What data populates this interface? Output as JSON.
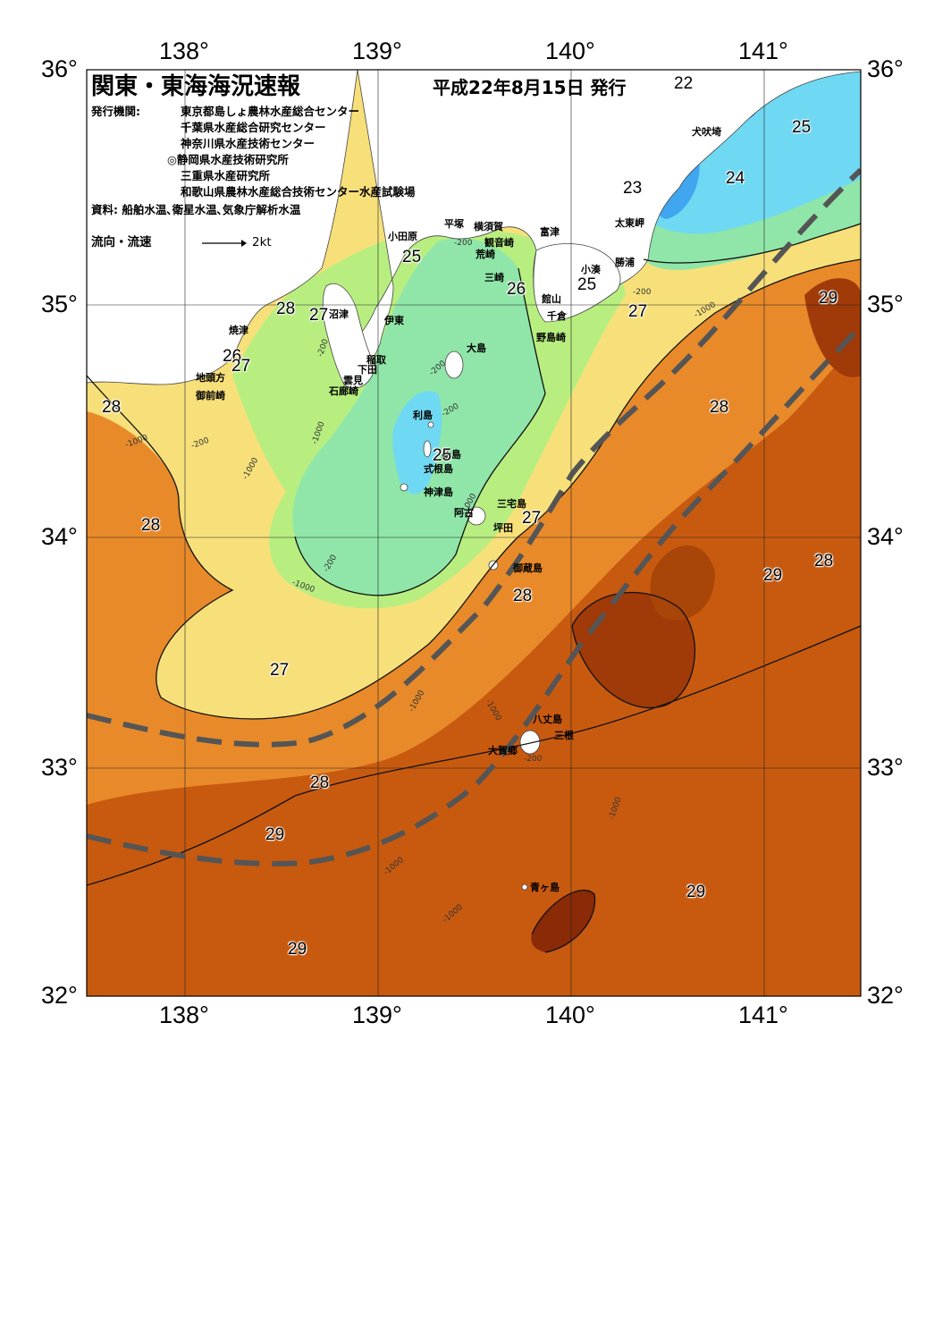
{
  "title": "関東・東海海況速報",
  "issue_date": "平成22年8月15日 発行",
  "issuers_label": "発行機関:",
  "issuers": [
    "東京都島しょ農林水産総合センター",
    "千葉県水産総合研究センター",
    "神奈川県水産技術センター",
    "◎静岡県水産技術研究所",
    "三重県水産研究所",
    "和歌山県農林水産総合技術センター水産試験場"
  ],
  "sources": "資料: 船舶水温､衛星水温､気象庁解析水温",
  "current_legend": {
    "label": "流向・流速",
    "speed": "2kt"
  },
  "axes": {
    "lon_top": [
      "138°",
      "139°",
      "140°",
      "141°"
    ],
    "lon_bottom": [
      "138°",
      "139°",
      "140°",
      "141°"
    ],
    "lat_left": [
      "36°",
      "35°",
      "34°",
      "33°",
      "32°"
    ],
    "lat_right": [
      "36°",
      "35°",
      "34°",
      "33°",
      "32°"
    ]
  },
  "colors": {
    "t22": "#2f6fe0",
    "t23": "#3fa6ef",
    "t24": "#6fd8f2",
    "t25": "#8fe6a8",
    "t26": "#b8ee80",
    "t27": "#f7e07a",
    "t28": "#e88a2a",
    "t29": "#c85a10",
    "t30": "#8a2a06",
    "land": "#ffffff",
    "kuroshio": "#555555"
  },
  "place_names": {
    "inubozaki": "犬吠埼",
    "taitomisaki": "太東岬",
    "katsuura": "勝浦",
    "kominato": "小湊",
    "futtsu": "富津",
    "kannonzaki": "観音崎",
    "arasaki": "荒崎",
    "yokosuka": "横須賀",
    "hiratsuka": "平塚",
    "odawara": "小田原",
    "misaki": "三崎",
    "tateyama": "館山",
    "chikura": "千倉",
    "nojimazaki": "野島崎",
    "oshima": "大島",
    "ito": "伊東",
    "inatori": "稲取",
    "shimoda": "下田",
    "kumomi": "雲見",
    "irozaki": "石廊崎",
    "numazu": "沼津",
    "yaizu": "焼津",
    "jitogata": "地頭方",
    "omaezaki": "御前崎",
    "toshima": "利島",
    "niijima": "新島",
    "shikinejima": "式根島",
    "kozushima": "神津島",
    "miyakejima": "三宅島",
    "ako": "阿古",
    "tsubota": "坪田",
    "mikurajima": "御蔵島",
    "hachijojima": "八丈島",
    "mitsune": "三根",
    "okago": "大賀郷",
    "aogashima": "青ヶ島"
  },
  "temperature_labels": [
    "22",
    "25",
    "24",
    "23",
    "25",
    "26",
    "25",
    "27",
    "28",
    "27",
    "26",
    "27",
    "28",
    "29",
    "28",
    "25",
    "27",
    "28",
    "28",
    "29",
    "28",
    "27",
    "28",
    "29",
    "29",
    "29"
  ],
  "depth_labels": [
    "-200",
    "-1000"
  ]
}
